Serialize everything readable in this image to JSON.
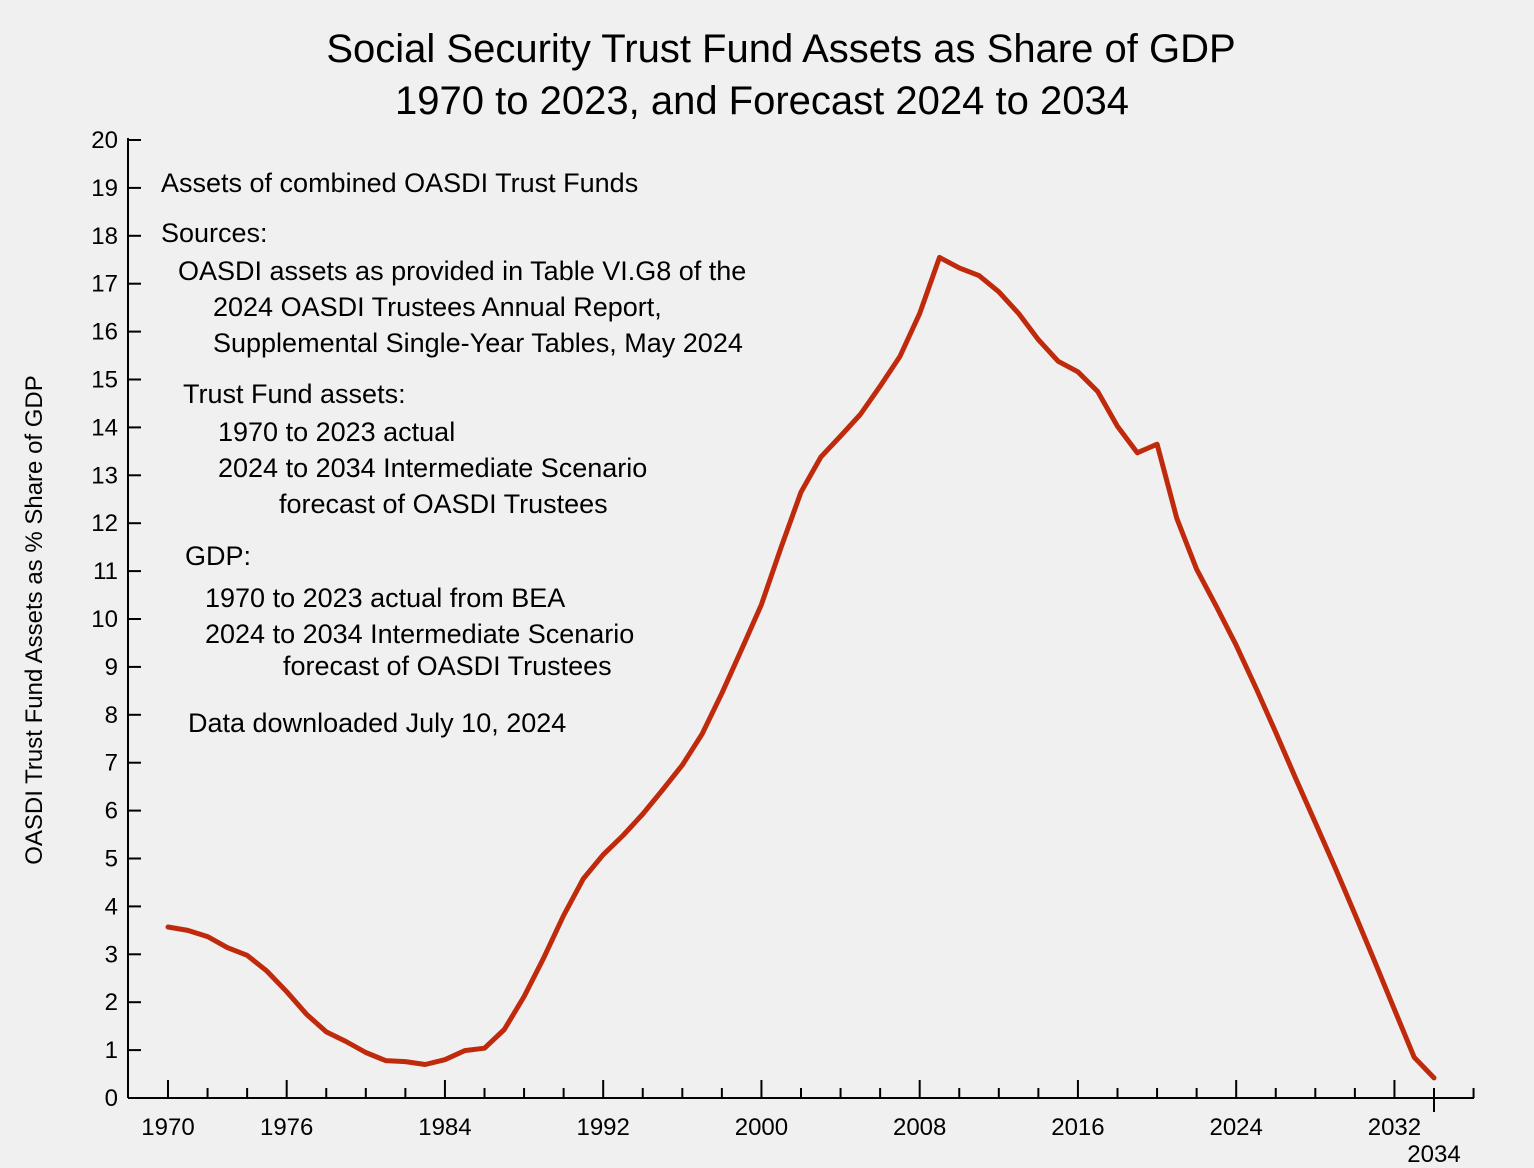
{
  "chart_data": {
    "type": "line",
    "title": "Social Security Trust Fund Assets as Share of GDP",
    "subtitle": "1970 to 2023, and Forecast 2024 to 2034",
    "xlabel": "",
    "ylabel": "OASDI Trust Fund Assets as % Share of GDP",
    "xlim": [
      1970,
      2034
    ],
    "ylim": [
      0,
      20
    ],
    "y_ticks": [
      "0",
      "1",
      "2",
      "3",
      "4",
      "5",
      "6",
      "7",
      "8",
      "9",
      "10",
      "11",
      "12",
      "13",
      "14",
      "15",
      "16",
      "17",
      "18",
      "19",
      "20"
    ],
    "x_tick_labels": [
      {
        "x": 1970,
        "label": "1970"
      },
      {
        "x": 1976,
        "label": "1976"
      },
      {
        "x": 1984,
        "label": "1984"
      },
      {
        "x": 1992,
        "label": "1992"
      },
      {
        "x": 2000,
        "label": "2000"
      },
      {
        "x": 2008,
        "label": "2008"
      },
      {
        "x": 2016,
        "label": "2016"
      },
      {
        "x": 2024,
        "label": "2024"
      },
      {
        "x": 2032,
        "label": "2032"
      },
      {
        "x": 2034,
        "label": "2034"
      }
    ],
    "grid": false,
    "line_color": "#c02a0c",
    "series": [
      {
        "x": [
          1970,
          1971,
          1972,
          1973,
          1974,
          1975,
          1976,
          1977,
          1978,
          1979,
          1980,
          1981,
          1982,
          1983,
          1984,
          1985,
          1986,
          1987,
          1988,
          1989,
          1990,
          1991,
          1992,
          1993,
          1994,
          1995,
          1996,
          1997,
          1998,
          1999,
          2000,
          2001,
          2002,
          2003,
          2004,
          2005,
          2006,
          2007,
          2008,
          2009,
          2010,
          2011,
          2012,
          2013,
          2014,
          2015,
          2016,
          2017,
          2018,
          2019,
          2020,
          2021,
          2022,
          2023,
          2024,
          2025,
          2026,
          2027,
          2028,
          2029,
          2030,
          2031,
          2032,
          2033,
          2034
        ],
        "values": [
          3.57,
          3.5,
          3.37,
          3.14,
          2.98,
          2.65,
          2.22,
          1.75,
          1.38,
          1.18,
          0.95,
          0.78,
          0.76,
          0.7,
          0.8,
          0.99,
          1.04,
          1.43,
          2.12,
          2.93,
          3.81,
          4.58,
          5.08,
          5.48,
          5.93,
          6.43,
          6.95,
          7.6,
          8.45,
          9.37,
          10.3,
          11.5,
          12.65,
          13.38,
          13.82,
          14.27,
          14.86,
          15.48,
          16.38,
          17.55,
          17.33,
          17.17,
          16.83,
          16.38,
          15.83,
          15.38,
          15.16,
          14.75,
          14.02,
          13.47,
          13.65,
          12.1,
          11.04,
          10.26,
          9.45,
          8.56,
          7.63,
          6.68,
          5.75,
          4.81,
          3.84,
          2.85,
          1.85,
          0.85,
          0.42
        ]
      }
    ],
    "annotations": [
      "Assets of combined OASDI Trust Funds",
      "Sources:",
      "OASDI assets as provided in Table VI.G8 of the",
      "2024 OASDI Trustees Annual Report,",
      "Supplemental Single-Year Tables, May 2024",
      "Trust Fund assets:",
      "1970 to 2023 actual",
      "2024 to 2034 Intermediate Scenario",
      "forecast of OASDI Trustees",
      "GDP:",
      "1970 to 2023 actual from BEA",
      "2024 to 2034 Intermediate Scenario",
      "forecast of OASDI Trustees",
      "Data downloaded July 10, 2024"
    ]
  }
}
